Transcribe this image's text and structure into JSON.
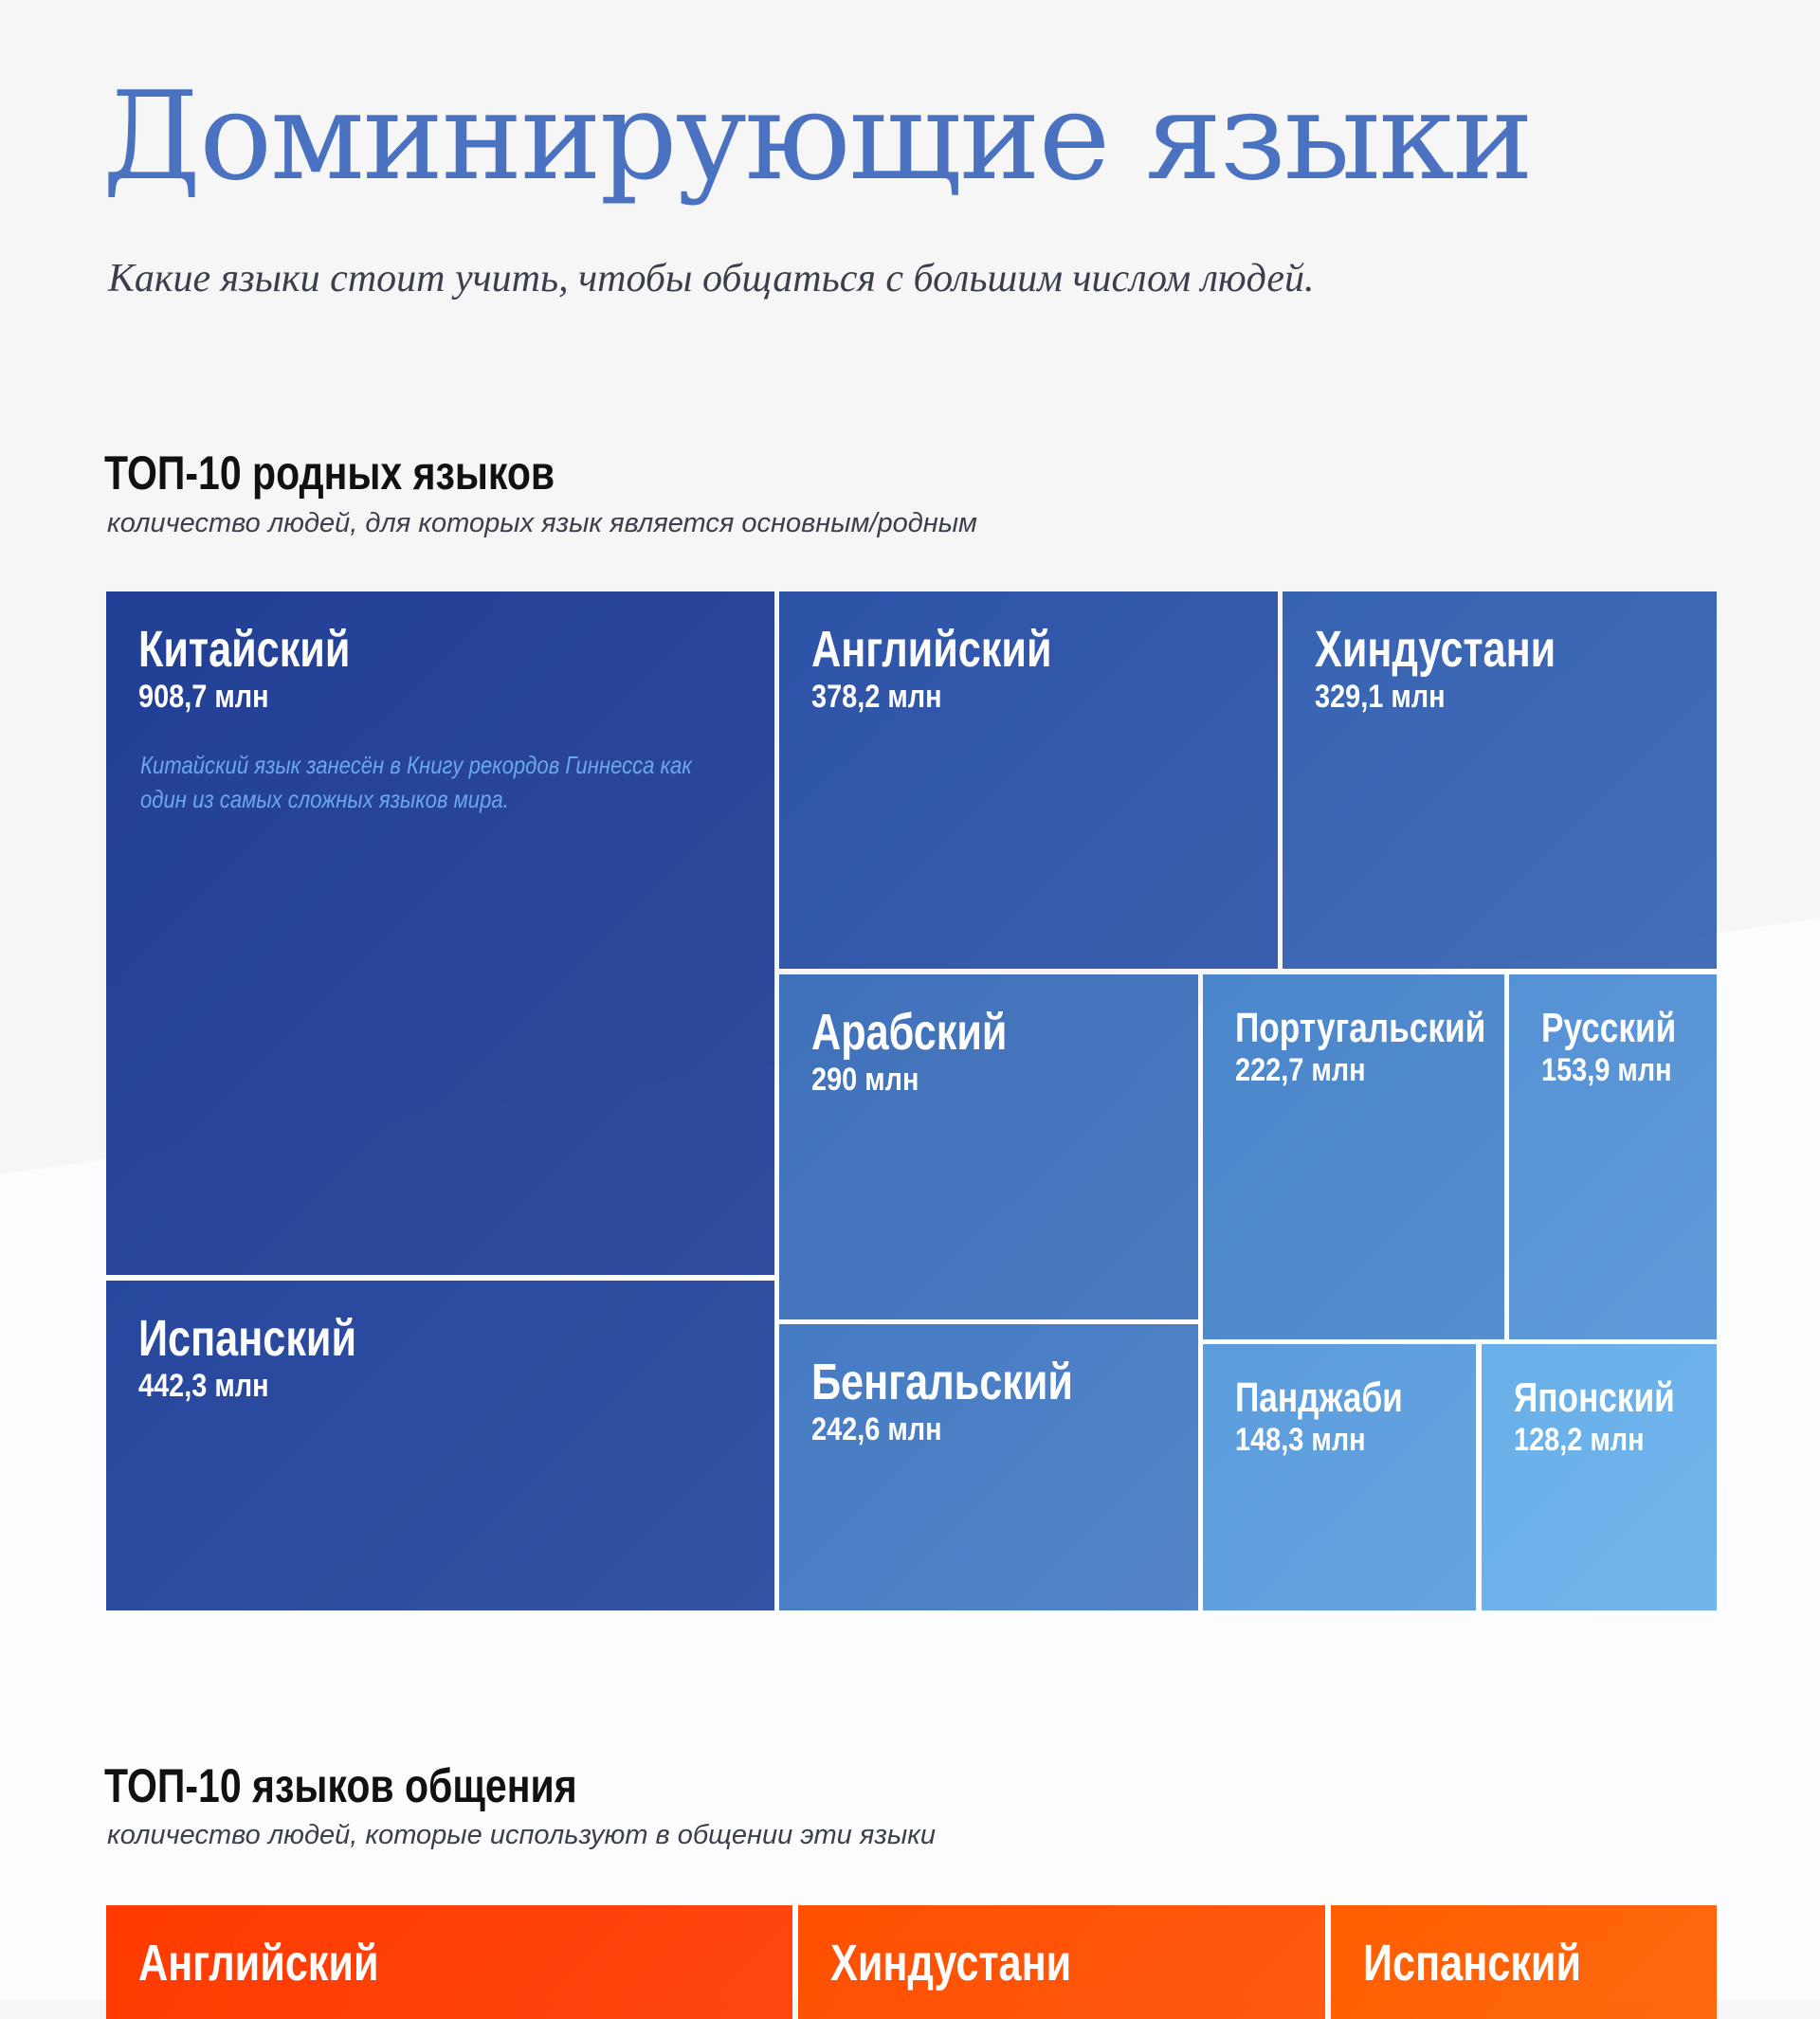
{
  "header": {
    "title": "Доминирующие языки",
    "subtitle": "Какие языки стоит учить, чтобы общаться с большим числом людей."
  },
  "chart_data": [
    {
      "type": "treemap",
      "title": "ТОП-10 родных языков",
      "subtitle": "количество людей, для которых язык является основным/родным",
      "unit": "млн",
      "annotation": "Китайский язык занесён в Книгу рекордов Гиннесса как один из самых сложных языков мира.",
      "items": [
        {
          "name": "Китайский",
          "value": 908.7,
          "label": "908,7 млн",
          "color": "#213f96"
        },
        {
          "name": "Испанский",
          "value": 442.3,
          "label": "442,3 млн",
          "color": "#26479d"
        },
        {
          "name": "Английский",
          "value": 378.2,
          "label": "378,2 млн",
          "color": "#2d53a8"
        },
        {
          "name": "Хиндустани",
          "value": 329.1,
          "label": "329,1 млн",
          "color": "#3763b3"
        },
        {
          "name": "Арабский",
          "value": 290,
          "label": "290 млн",
          "color": "#3f71bb"
        },
        {
          "name": "Бенгальский",
          "value": 242.6,
          "label": "242,6 млн",
          "color": "#467bc3"
        },
        {
          "name": "Португальский",
          "value": 222.7,
          "label": "222,7 млн",
          "color": "#4a86cb"
        },
        {
          "name": "Русский",
          "value": 153.9,
          "label": "153,9 млн",
          "color": "#5592d5"
        },
        {
          "name": "Панджаби",
          "value": 148.3,
          "label": "148,3 млн",
          "color": "#5b9ddd"
        },
        {
          "name": "Японский",
          "value": 128.2,
          "label": "128,2 млн",
          "color": "#68b0ea"
        }
      ]
    },
    {
      "type": "treemap",
      "title": "ТОП-10 языков общения",
      "subtitle": "количество людей, которые используют в общении эти языки",
      "items": [
        {
          "name": "Английский",
          "color": "#ff3a00"
        },
        {
          "name": "Хиндустани",
          "color": "#ff4f00"
        },
        {
          "name": "Испанский",
          "color": "#ff5e00"
        }
      ]
    }
  ]
}
